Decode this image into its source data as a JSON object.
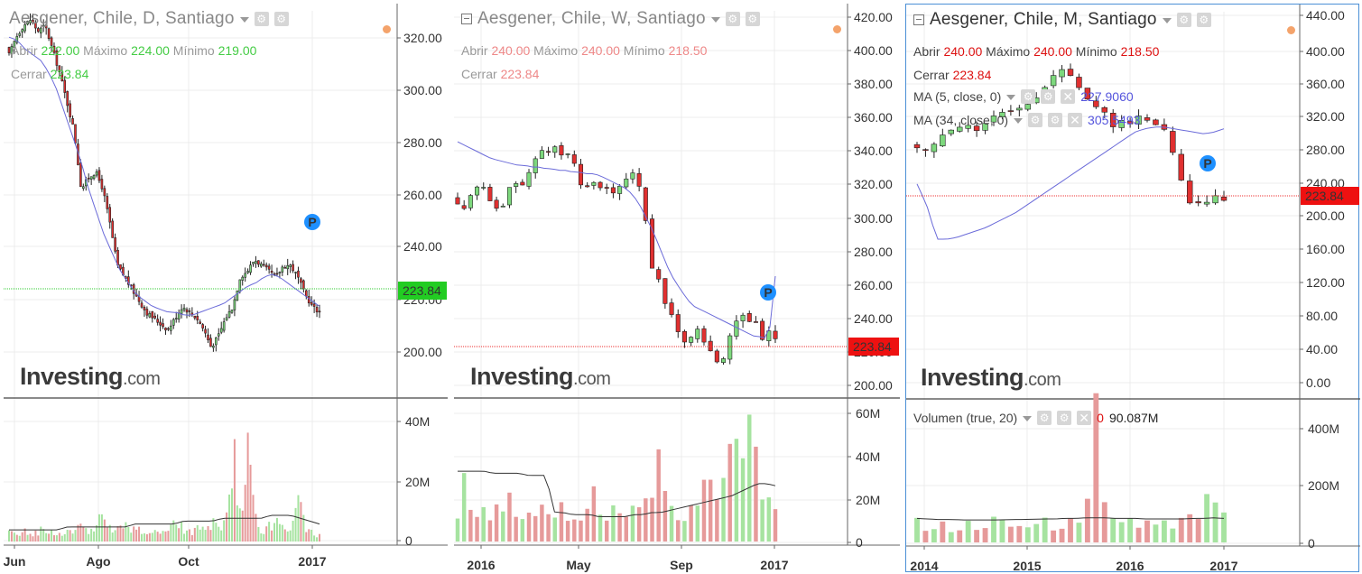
{
  "colors": {
    "up": "#7dd87d",
    "down": "#e03030",
    "vol_up": "#a6e3a0",
    "vol_down": "#e69a9a",
    "ma": "#6b6bd9",
    "vol_ma": "#333333",
    "grid": "#ececec",
    "last_green": "#22cc22",
    "last_red": "#ee1111"
  },
  "panels": [
    {
      "title": "Aesgener, Chile, D, Santiago",
      "legend": {
        "open_label": "Abrir",
        "open": "222.00",
        "high_label": "Máximo",
        "high": "224.00",
        "low_label": "Mínimo",
        "low": "219.00",
        "close_label": "Cerrar",
        "close": "223.84"
      },
      "last_price": "223.84",
      "watermark_main": "Investing",
      "watermark_suffix": ".com",
      "price_ticks": [
        "320.00",
        "300.00",
        "280.00",
        "260.00",
        "240.00",
        "220.00",
        "200.00"
      ],
      "volume_ticks": [
        "40M",
        "20M",
        "0"
      ],
      "x_labels": [
        "Jun",
        "Ago",
        "Oct",
        "2017"
      ]
    },
    {
      "title": "Aesgener, Chile, W, Santiago",
      "legend": {
        "open_label": "Abrir",
        "open": "240.00",
        "high_label": "Máximo",
        "high": "240.00",
        "low_label": "Mínimo",
        "low": "218.50",
        "close_label": "Cerrar",
        "close": "223.84"
      },
      "last_price": "223.84",
      "watermark_main": "Investing",
      "watermark_suffix": ".com",
      "price_ticks": [
        "420.00",
        "400.00",
        "380.00",
        "360.00",
        "340.00",
        "320.00",
        "300.00",
        "280.00",
        "260.00",
        "240.00",
        "220.00",
        "200.00"
      ],
      "volume_ticks": [
        "60M",
        "40M",
        "20M",
        "0"
      ],
      "x_labels": [
        "2016",
        "May",
        "Sep",
        "2017"
      ]
    },
    {
      "title": "Aesgener, Chile, M, Santiago",
      "legend": {
        "open_label": "Abrir",
        "open": "240.00",
        "high_label": "Máximo",
        "high": "240.00",
        "low_label": "Mínimo",
        "low": "218.50",
        "close_label": "Cerrar",
        "close": "223.84"
      },
      "ma1": {
        "label": "MA (5, close, 0)",
        "value": "227.9060"
      },
      "ma2": {
        "label": "MA (34, close, 0)",
        "value": "305.5493"
      },
      "volume_legend": {
        "label": "Volumen (true, 20)",
        "value1": "0",
        "value2": "90.087M"
      },
      "last_price": "223.84",
      "watermark_main": "Investing",
      "watermark_suffix": ".com",
      "price_ticks": [
        "440.00",
        "400.00",
        "360.00",
        "320.00",
        "280.00",
        "240.00",
        "200.00",
        "160.00",
        "120.00",
        "80.00",
        "40.00",
        "0.00"
      ],
      "volume_ticks": [
        "400M",
        "200M",
        "0"
      ],
      "x_labels": [
        "2014",
        "2015",
        "2016",
        "2017"
      ]
    }
  ],
  "chart_data": [
    {
      "type": "candlestick",
      "title": "Aesgener, Chile, D, Santiago",
      "ylim": [
        195,
        327
      ],
      "x_labels": [
        "Jun",
        "Ago",
        "Oct",
        "2017"
      ],
      "close_path": [
        312,
        318,
        322,
        324,
        320,
        322,
        314,
        306,
        296,
        286,
        266,
        270,
        272,
        266,
        254,
        240,
        236,
        232,
        228,
        224,
        222,
        220,
        218,
        222,
        226,
        224,
        222,
        218,
        212,
        216,
        222,
        226,
        236,
        238,
        242,
        240,
        238,
        236,
        240,
        240,
        236,
        230,
        226,
        224
      ],
      "ma_path": [
        318,
        317,
        314,
        312,
        310,
        306,
        300,
        292,
        284,
        276,
        266,
        258,
        250,
        244,
        238,
        234,
        230,
        228,
        226,
        225,
        224,
        224,
        223,
        223,
        224,
        225,
        226,
        227,
        229,
        231,
        233,
        234,
        236,
        237,
        236,
        234,
        232,
        230,
        228,
        226
      ],
      "volume_path_M": [
        3,
        2,
        4,
        2,
        3,
        5,
        3,
        2,
        4,
        3,
        6,
        3,
        4,
        8,
        5,
        3,
        6,
        4,
        5,
        3,
        2,
        4,
        3,
        5,
        6,
        4,
        3,
        5,
        4,
        6,
        3,
        8,
        28,
        5,
        41,
        6,
        4,
        5,
        8,
        3,
        4,
        16,
        4,
        3,
        2
      ],
      "volume_ma_M": [
        4,
        4,
        4,
        4,
        4,
        4,
        5,
        5,
        5,
        5,
        5,
        5,
        5,
        6,
        6,
        6,
        6,
        6,
        7,
        7,
        7,
        7,
        8,
        8,
        8,
        8,
        8,
        9,
        9,
        9,
        8,
        7,
        6
      ]
    },
    {
      "type": "candlestick",
      "title": "Aesgener, Chile, W, Santiago",
      "ylim": [
        192,
        422
      ],
      "x_labels": [
        "2016",
        "May",
        "Sep",
        "2017"
      ],
      "close_path": [
        308,
        305,
        312,
        318,
        316,
        310,
        304,
        306,
        316,
        320,
        318,
        326,
        334,
        340,
        338,
        342,
        336,
        336,
        330,
        318,
        316,
        320,
        318,
        316,
        314,
        318,
        322,
        326,
        318,
        298,
        270,
        262,
        248,
        242,
        230,
        224,
        228,
        232,
        226,
        220,
        212,
        214,
        228,
        236,
        240,
        238,
        236,
        226,
        232,
        226
      ],
      "ma_path": [
        344,
        342,
        340,
        338,
        336,
        334,
        333,
        332,
        331,
        330,
        330,
        329,
        329,
        328,
        328,
        327,
        327,
        326,
        326,
        325,
        325,
        324,
        322,
        320,
        318,
        316,
        312,
        306,
        298,
        290,
        280,
        270,
        262,
        256,
        250,
        246,
        244,
        242,
        240,
        238,
        236,
        234,
        232,
        230,
        228,
        228,
        226,
        264
      ],
      "volume_path_M": [
        16,
        34,
        12,
        16,
        14,
        10,
        16,
        22,
        12,
        14,
        10,
        16,
        20,
        10,
        12,
        14,
        8,
        10,
        16,
        12,
        22,
        14,
        12,
        14,
        10,
        16,
        12,
        18,
        14,
        36,
        24,
        20,
        12,
        16,
        14,
        22,
        28,
        34,
        12,
        40,
        46,
        30,
        56,
        40,
        18,
        36,
        12
      ],
      "volume_ma_M": [
        34,
        34,
        34,
        34,
        33,
        33,
        33,
        33,
        32,
        32,
        32,
        14,
        14,
        13,
        13,
        13,
        12,
        12,
        12,
        12,
        13,
        13,
        14,
        14,
        15,
        16,
        17,
        18,
        19,
        20,
        21,
        22,
        24,
        26,
        28,
        28,
        27
      ]
    },
    {
      "type": "candlestick",
      "title": "Aesgener, Chile, M, Santiago",
      "ylim": [
        -10,
        452
      ],
      "x_labels": [
        "2014",
        "2015",
        "2016",
        "2017"
      ],
      "close_path": [
        290,
        286,
        294,
        302,
        310,
        316,
        314,
        312,
        320,
        326,
        330,
        334,
        338,
        342,
        350,
        364,
        376,
        382,
        374,
        360,
        350,
        340,
        330,
        316,
        320,
        318,
        326,
        322,
        318,
        312,
        282,
        248,
        222,
        224,
        226,
        232,
        224
      ],
      "ma_path": [
        246,
        220,
        180,
        180,
        182,
        186,
        190,
        194,
        200,
        206,
        212,
        220,
        228,
        236,
        244,
        252,
        260,
        268,
        276,
        284,
        292,
        300,
        308,
        312,
        314,
        314,
        312,
        310,
        308,
        306,
        308,
        312
      ],
      "volume_path_M": [
        100,
        60,
        70,
        50,
        40,
        60,
        70,
        80,
        90,
        60,
        70,
        50,
        60,
        80,
        70,
        60,
        90,
        80,
        450,
        100,
        70,
        80,
        60,
        70,
        50,
        80,
        60,
        70,
        100,
        150,
        190,
        90
      ],
      "volume_ma_M": [
        90,
        88,
        86,
        86,
        85,
        84,
        84,
        84,
        84,
        85,
        86,
        86,
        87,
        88,
        88,
        90,
        90,
        92,
        92,
        92,
        90,
        90,
        90,
        88,
        88,
        88,
        88,
        88,
        90,
        90,
        92,
        90
      ]
    }
  ]
}
